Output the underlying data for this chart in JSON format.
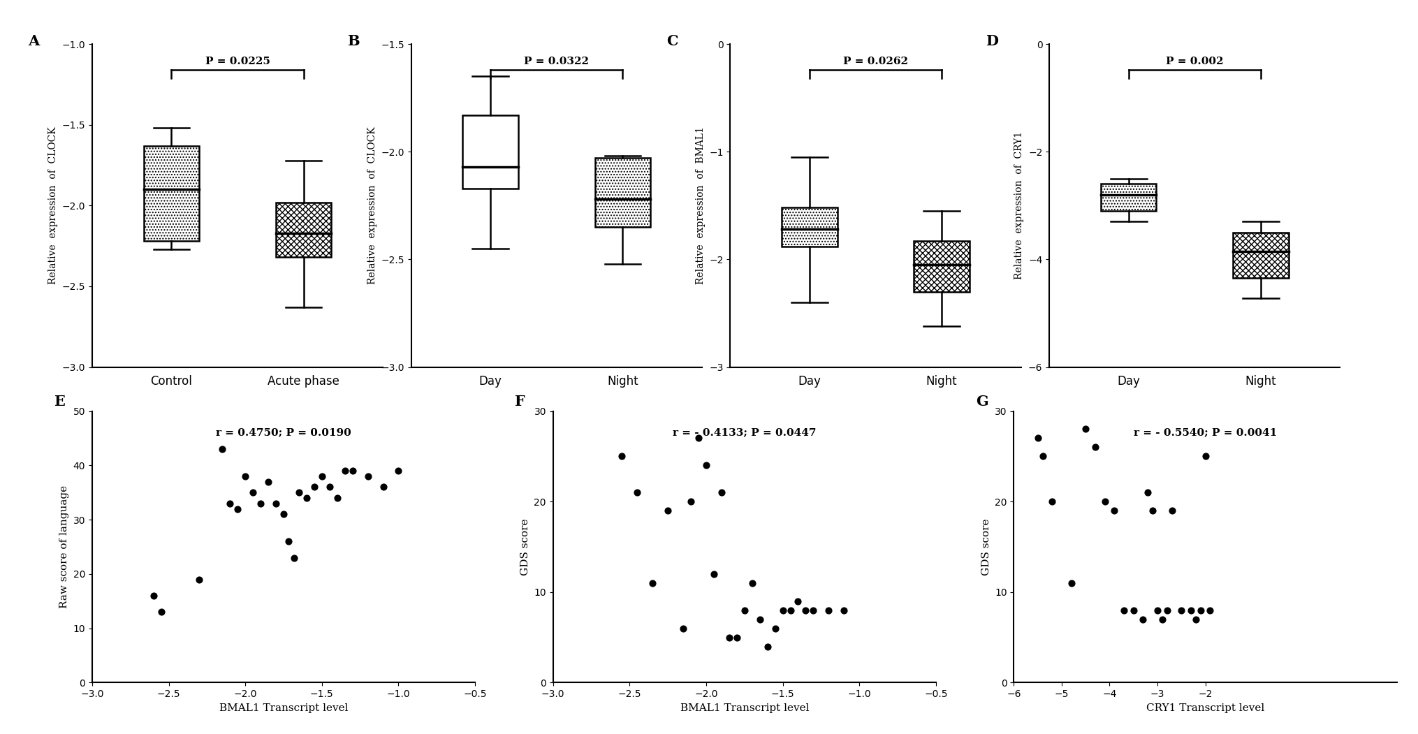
{
  "panel_A": {
    "title_label": "A",
    "ylabel": "Relative  expression  of  CLOCK",
    "categories": [
      "Control",
      "Acute phase"
    ],
    "ylim": [
      -3.0,
      -1.0
    ],
    "yticks": [
      -3.0,
      -2.5,
      -2.0,
      -1.5,
      -1.0
    ],
    "pvalue": "P = 0.0225",
    "boxes": [
      {
        "median": -1.9,
        "q1": -2.22,
        "q3": -1.63,
        "whislo": -2.27,
        "whishi": -1.52,
        "hatch": "...."
      },
      {
        "median": -2.17,
        "q1": -2.32,
        "q3": -1.98,
        "whislo": -2.63,
        "whishi": -1.72,
        "hatch": "xxxx"
      }
    ]
  },
  "panel_B": {
    "title_label": "B",
    "ylabel": "Relative  expression  of  CLOCK",
    "categories": [
      "Day",
      "Night"
    ],
    "ylim": [
      -3.0,
      -1.5
    ],
    "yticks": [
      -3.0,
      -2.5,
      -2.0,
      -1.5
    ],
    "pvalue": "P = 0.0322",
    "boxes": [
      {
        "median": -2.07,
        "q1": -2.17,
        "q3": -1.83,
        "whislo": -2.45,
        "whishi": -1.65,
        "hatch": ""
      },
      {
        "median": -2.22,
        "q1": -2.35,
        "q3": -2.03,
        "whislo": -2.52,
        "whishi": -2.02,
        "hatch": "...."
      }
    ]
  },
  "panel_C": {
    "title_label": "C",
    "ylabel": "Relative  expression  of  BMAL1",
    "categories": [
      "Day",
      "Night"
    ],
    "ylim": [
      -3.0,
      0.0
    ],
    "yticks": [
      -3.0,
      -2.0,
      -1.0,
      0.0
    ],
    "pvalue": "P = 0.0262",
    "boxes": [
      {
        "median": -1.72,
        "q1": -1.88,
        "q3": -1.52,
        "whislo": -2.4,
        "whishi": -1.05,
        "hatch": "...."
      },
      {
        "median": -2.05,
        "q1": -2.3,
        "q3": -1.83,
        "whislo": -2.62,
        "whishi": -1.55,
        "hatch": "xxxx"
      }
    ]
  },
  "panel_D": {
    "title_label": "D",
    "ylabel": "Relative  expression  of  CRY1",
    "categories": [
      "Day",
      "Night"
    ],
    "ylim": [
      -6.0,
      0.0
    ],
    "yticks": [
      -6.0,
      -4.0,
      -2.0,
      0.0
    ],
    "pvalue": "P = 0.002",
    "boxes": [
      {
        "median": -2.8,
        "q1": -3.1,
        "q3": -2.6,
        "whislo": -3.3,
        "whishi": -2.5,
        "hatch": "...."
      },
      {
        "median": -3.85,
        "q1": -4.35,
        "q3": -3.5,
        "whislo": -4.72,
        "whishi": -3.3,
        "hatch": "xxxx"
      }
    ]
  },
  "panel_E": {
    "title_label": "E",
    "xlabel": "BMAL1 Transcript level",
    "ylabel": "Raw score of language",
    "annotation": "r = 0.4750; P = 0.0190",
    "xlim": [
      -3.0,
      -0.5
    ],
    "ylim": [
      0,
      50
    ],
    "xticks": [
      -3.0,
      -2.5,
      -2.0,
      -1.5,
      -1.0,
      -0.5
    ],
    "yticks": [
      0,
      10,
      20,
      30,
      40,
      50
    ],
    "x": [
      -2.6,
      -2.55,
      -2.3,
      -2.15,
      -2.1,
      -2.05,
      -2.0,
      -1.95,
      -1.9,
      -1.85,
      -1.8,
      -1.75,
      -1.72,
      -1.68,
      -1.65,
      -1.6,
      -1.55,
      -1.5,
      -1.45,
      -1.4,
      -1.35,
      -1.3,
      -1.2,
      -1.1,
      -1.0
    ],
    "y": [
      16,
      13,
      19,
      43,
      33,
      32,
      38,
      35,
      33,
      37,
      33,
      31,
      26,
      23,
      35,
      34,
      36,
      38,
      36,
      34,
      39,
      39,
      38,
      36,
      39
    ]
  },
  "panel_F": {
    "title_label": "F",
    "xlabel": "BMAL1 Transcript level",
    "ylabel": "GDS score",
    "annotation": "r = - 0.4133; P = 0.0447",
    "xlim": [
      -3.0,
      -0.5
    ],
    "ylim": [
      0,
      30
    ],
    "xticks": [
      -3.0,
      -2.5,
      -2.0,
      -1.5,
      -1.0,
      -0.5
    ],
    "yticks": [
      0,
      10,
      20,
      30
    ],
    "x": [
      -2.55,
      -2.45,
      -2.35,
      -2.25,
      -2.15,
      -2.1,
      -2.05,
      -2.0,
      -1.95,
      -1.9,
      -1.85,
      -1.8,
      -1.75,
      -1.7,
      -1.65,
      -1.6,
      -1.55,
      -1.5,
      -1.45,
      -1.4,
      -1.35,
      -1.3,
      -1.2,
      -1.1
    ],
    "y": [
      25,
      21,
      11,
      19,
      6,
      20,
      27,
      24,
      12,
      21,
      5,
      5,
      8,
      11,
      7,
      4,
      6,
      8,
      8,
      9,
      8,
      8,
      8,
      8
    ]
  },
  "panel_G": {
    "title_label": "G",
    "xlabel": "CRY1 Transcript level",
    "ylabel": "GDS score",
    "annotation": "r = - 0.5540; P = 0.0041",
    "xlim": [
      -6.0,
      2.0
    ],
    "ylim": [
      0,
      30
    ],
    "xticks": [
      -6,
      -5,
      -4,
      -3,
      -2
    ],
    "yticks": [
      0,
      10,
      20,
      30
    ],
    "x": [
      -5.5,
      -5.4,
      -5.2,
      -4.8,
      -4.5,
      -4.3,
      -4.1,
      -3.9,
      -3.7,
      -3.5,
      -3.3,
      -3.2,
      -3.1,
      -3.0,
      -2.9,
      -2.8,
      -2.7,
      -2.5,
      -2.3,
      -2.2,
      -2.1,
      -2.0,
      -1.9
    ],
    "y": [
      27,
      25,
      20,
      11,
      28,
      26,
      20,
      19,
      8,
      8,
      7,
      21,
      19,
      8,
      7,
      8,
      19,
      8,
      8,
      7,
      8,
      25,
      8
    ]
  }
}
